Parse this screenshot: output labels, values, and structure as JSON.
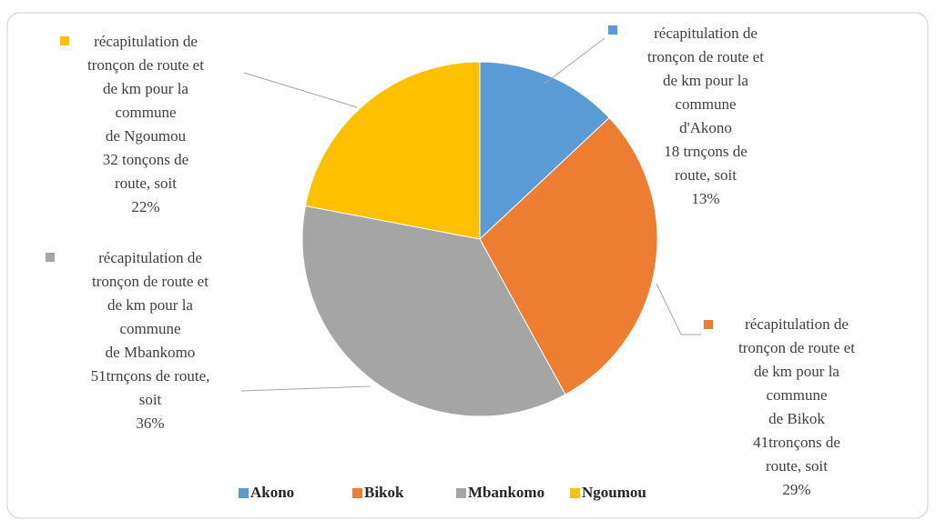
{
  "chart_data": {
    "type": "pie",
    "categories": [
      "Akono",
      "Bikok",
      "Mbankomo",
      "Ngoumou"
    ],
    "values": [
      13,
      29,
      36,
      22
    ],
    "colors": [
      "#5b9bd5",
      "#ed7d31",
      "#a5a5a5",
      "#ffc000"
    ],
    "value_labels": [
      [
        "récapitulation de",
        "tronçon de route et",
        "de km pour la",
        "commune",
        "d'Akono",
        "18 trnçons de",
        "route, soit",
        "13%"
      ],
      [
        "récapitulation de",
        "tronçon de route et",
        "de km pour la",
        "commune",
        "de Bikok",
        "41tronçons de",
        "route, soit",
        "29%"
      ],
      [
        "récapitulation de",
        "tronçon de route et",
        "de km pour la",
        "commune",
        "de Mbankomo",
        "51trnçons de route,",
        "soit",
        "36%"
      ],
      [
        "récapitulation de",
        "tronçon de route et",
        "de km pour la",
        "commune",
        "de Ngoumou",
        "32 tonçons de",
        "route, soit",
        "22%"
      ]
    ],
    "legend": "bottom"
  }
}
